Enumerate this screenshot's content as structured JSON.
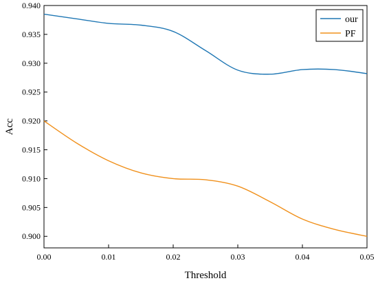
{
  "chart_data": {
    "type": "line",
    "title": "",
    "xlabel": "Threshold",
    "ylabel": "Acc",
    "xlim": [
      0.0,
      0.05
    ],
    "ylim": [
      0.898,
      0.94
    ],
    "x_ticks": [
      "0.00",
      "0.01",
      "0.02",
      "0.03",
      "0.04",
      "0.05"
    ],
    "y_ticks": [
      "0.900",
      "0.905",
      "0.910",
      "0.915",
      "0.920",
      "0.925",
      "0.930",
      "0.935",
      "0.940"
    ],
    "grid": false,
    "legend_position": "top-right",
    "x": [
      0.0,
      0.005,
      0.01,
      0.015,
      0.02,
      0.025,
      0.03,
      0.035,
      0.04,
      0.045,
      0.05
    ],
    "series": [
      {
        "name": "our",
        "color": "#1f77b4",
        "values": [
          0.9385,
          0.9377,
          0.9369,
          0.9366,
          0.9355,
          0.9322,
          0.9288,
          0.9281,
          0.9289,
          0.9289,
          0.9282
        ]
      },
      {
        "name": "PF",
        "color": "#f0901b",
        "values": [
          0.92,
          0.9162,
          0.9131,
          0.911,
          0.91,
          0.9098,
          0.9087,
          0.906,
          0.903,
          0.9012,
          0.9
        ]
      }
    ]
  }
}
